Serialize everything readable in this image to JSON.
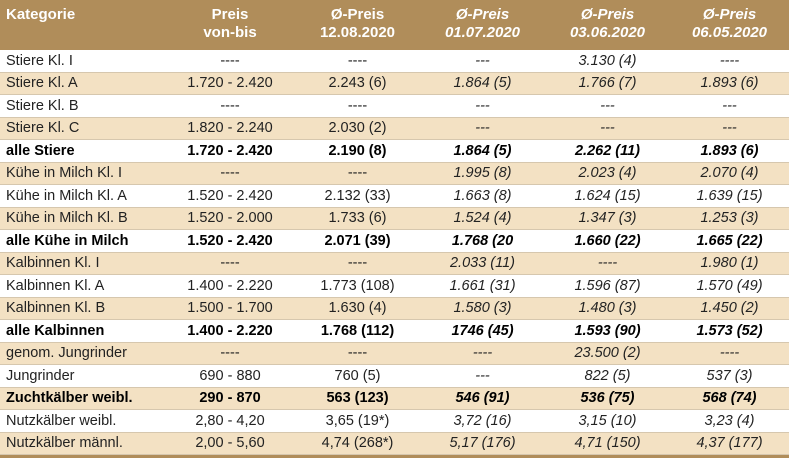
{
  "table": {
    "header": [
      [
        "Kategorie"
      ],
      [
        "Preis",
        "von-bis"
      ],
      [
        "Ø-Preis",
        "12.08.2020"
      ],
      [
        "Ø-Preis",
        "01.07.2020"
      ],
      [
        "Ø-Preis",
        "03.06.2020"
      ],
      [
        "Ø-Preis",
        "06.05.2020"
      ]
    ],
    "rows": [
      [
        "Stiere Kl. I",
        "----",
        "----",
        "---",
        "3.130 (4)",
        "----"
      ],
      [
        "Stiere Kl. A",
        "1.720 - 2.420",
        "2.243 (6)",
        "1.864 (5)",
        "1.766 (7)",
        "1.893 (6)"
      ],
      [
        "Stiere Kl. B",
        "----",
        "----",
        "---",
        "---",
        "---"
      ],
      [
        "Stiere Kl. C",
        "1.820 - 2.240",
        "2.030 (2)",
        "---",
        "---",
        "---"
      ],
      [
        "alle Stiere",
        "1.720 - 2.420",
        "2.190 (8)",
        "1.864 (5)",
        "2.262 (11)",
        "1.893 (6)"
      ],
      [
        "Kühe in Milch Kl. I",
        "----",
        "----",
        "1.995 (8)",
        "2.023 (4)",
        "2.070 (4)"
      ],
      [
        "Kühe in Milch Kl. A",
        "1.520 - 2.420",
        "2.132 (33)",
        "1.663 (8)",
        "1.624 (15)",
        "1.639 (15)"
      ],
      [
        "Kühe in Milch Kl. B",
        "1.520 - 2.000",
        "1.733 (6)",
        "1.524 (4)",
        "1.347 (3)",
        "1.253 (3)"
      ],
      [
        "alle Kühe in Milch",
        "1.520 - 2.420",
        "2.071 (39)",
        "1.768 (20",
        "1.660 (22)",
        "1.665 (22)"
      ],
      [
        "Kalbinnen Kl. I",
        "----",
        "----",
        "2.033 (11)",
        "----",
        "1.980 (1)"
      ],
      [
        "Kalbinnen Kl. A",
        "1.400 - 2.220",
        "1.773 (108)",
        "1.661 (31)",
        "1.596 (87)",
        "1.570 (49)"
      ],
      [
        "Kalbinnen Kl. B",
        "1.500 - 1.700",
        "1.630 (4)",
        "1.580 (3)",
        "1.480 (3)",
        "1.450 (2)"
      ],
      [
        "alle Kalbinnen",
        "1.400 - 2.220",
        "1.768 (112)",
        "1746 (45)",
        "1.593 (90)",
        "1.573 (52)"
      ],
      [
        "genom. Jungrinder",
        "----",
        "----",
        "----",
        "23.500 (2)",
        "----"
      ],
      [
        "Jungrinder",
        "690 - 880",
        "760 (5)",
        "---",
        "822 (5)",
        "537 (3)"
      ],
      [
        "Zuchtkälber weibl.",
        "290 - 870",
        "563 (123)",
        "546 (91)",
        "536 (75)",
        "568 (74)"
      ],
      [
        "Nutzkälber weibl.",
        "2,80 - 4,20",
        "3,65 (19*)",
        "3,72 (16)",
        "3,15 (10)",
        "3,23 (4)"
      ],
      [
        "Nutzkälber männl.",
        "2,00 - 5,60",
        "4,74 (268*)",
        "5,17 (176)",
        "4,71 (150)",
        "4,37 (177)"
      ]
    ]
  }
}
